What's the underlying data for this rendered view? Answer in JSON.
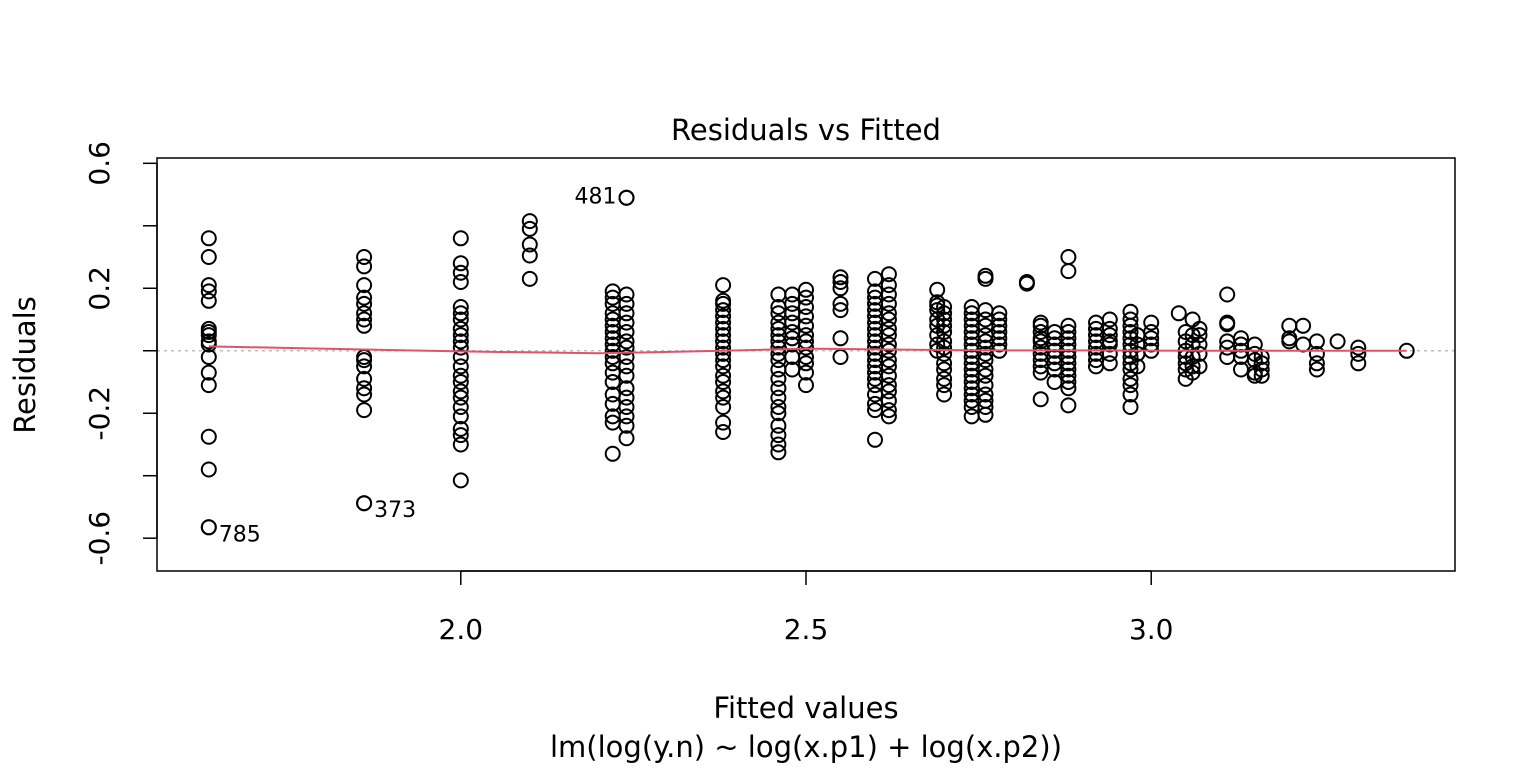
{
  "chart_data": {
    "type": "scatter",
    "title": "Residuals vs Fitted",
    "xlabel": "Fitted values",
    "subtitle": "lm(log(y.n) ~ log(x.p1) + log(x.p2))",
    "ylabel": "Residuals",
    "xlim": [
      1.56,
      3.44
    ],
    "ylim": [
      -0.705,
      0.617
    ],
    "xticks": [
      {
        "value": 2.0,
        "label": "2.0"
      },
      {
        "value": 2.5,
        "label": "2.5"
      },
      {
        "value": 3.0,
        "label": "3.0"
      }
    ],
    "yticks": [
      {
        "value": -0.6,
        "label": "-0.6",
        "labeled": true
      },
      {
        "value": -0.4,
        "label": "",
        "labeled": false
      },
      {
        "value": -0.2,
        "label": "-0.2",
        "labeled": true
      },
      {
        "value": 0.0,
        "label": "",
        "labeled": false
      },
      {
        "value": 0.2,
        "label": "0.2",
        "labeled": true
      },
      {
        "value": 0.4,
        "label": "",
        "labeled": false
      },
      {
        "value": 0.6,
        "label": "0.6",
        "labeled": true
      }
    ],
    "reference_line": {
      "y": 0,
      "style": "dotted",
      "color": "#bebebe"
    },
    "smooth_line": {
      "color": "#df536b",
      "points": [
        [
          1.635,
          0.014
        ],
        [
          1.86,
          0.004
        ],
        [
          2.0,
          -0.002
        ],
        [
          2.2,
          -0.008
        ],
        [
          2.38,
          0.0
        ],
        [
          2.5,
          0.007
        ],
        [
          2.62,
          0.004
        ],
        [
          2.75,
          0.001
        ],
        [
          2.9,
          0.001
        ],
        [
          3.1,
          0.0
        ],
        [
          3.37,
          0.0
        ]
      ]
    },
    "labeled_points": [
      {
        "x": 2.24,
        "y": 0.49,
        "label": "481",
        "side": "left"
      },
      {
        "x": 1.635,
        "y": -0.565,
        "label": "785",
        "side": "right"
      },
      {
        "x": 1.86,
        "y": -0.488,
        "label": "373",
        "side": "right"
      }
    ],
    "groups": [
      {
        "x": 1.635,
        "y": [
          0.36,
          0.3,
          0.21,
          0.19,
          0.16,
          0.07,
          0.06,
          0.05,
          0.03,
          0.02,
          -0.02,
          -0.07,
          -0.11,
          -0.275,
          -0.38,
          -0.565
        ]
      },
      {
        "x": 1.86,
        "y": [
          0.3,
          0.27,
          0.21,
          0.17,
          0.15,
          0.12,
          0.1,
          0.08,
          -0.02,
          -0.03,
          -0.05,
          -0.09,
          -0.12,
          -0.14,
          -0.19,
          -0.488
        ]
      },
      {
        "x": 2.0,
        "y": [
          0.36,
          0.28,
          0.25,
          0.22,
          0.14,
          0.12,
          0.1,
          0.07,
          0.05,
          0.03,
          0.01,
          -0.02,
          -0.05,
          -0.08,
          -0.1,
          -0.13,
          -0.15,
          -0.18,
          -0.21,
          -0.25,
          -0.27,
          -0.3,
          -0.415
        ]
      },
      {
        "x": 2.1,
        "y": [
          0.415,
          0.39,
          0.34,
          0.305,
          0.23
        ]
      },
      {
        "x": 2.22,
        "y": [
          0.19,
          0.17,
          0.15,
          0.12,
          0.1,
          0.08,
          0.06,
          0.04,
          0.02,
          0.0,
          -0.02,
          -0.04,
          -0.07,
          -0.1,
          -0.14,
          -0.17,
          -0.21,
          -0.23,
          -0.33
        ]
      },
      {
        "x": 2.24,
        "y": [
          0.49,
          0.18,
          0.15,
          0.12,
          0.09,
          0.06,
          0.03,
          0.01,
          -0.02,
          -0.05,
          -0.08,
          -0.12,
          -0.15,
          -0.18,
          -0.21,
          -0.24,
          -0.28
        ]
      },
      {
        "x": 2.38,
        "y": [
          0.21,
          0.16,
          0.15,
          0.13,
          0.11,
          0.09,
          0.07,
          0.05,
          0.03,
          0.01,
          -0.01,
          -0.03,
          -0.05,
          -0.08,
          -0.1,
          -0.13,
          -0.15,
          -0.18,
          -0.23,
          -0.26
        ]
      },
      {
        "x": 2.46,
        "y": [
          0.18,
          0.14,
          0.12,
          0.09,
          0.07,
          0.05,
          0.03,
          0.01,
          -0.01,
          -0.03,
          -0.06,
          -0.09,
          -0.12,
          -0.15,
          -0.18,
          -0.2,
          -0.24,
          -0.27,
          -0.3,
          -0.325
        ]
      },
      {
        "x": 2.48,
        "y": [
          0.18,
          0.15,
          0.12,
          0.09,
          0.06,
          0.04,
          0.02,
          -0.02,
          -0.06
        ]
      },
      {
        "x": 2.5,
        "y": [
          0.195,
          0.17,
          0.14,
          0.11,
          0.08,
          0.05,
          0.03,
          0.01,
          -0.02,
          -0.04,
          -0.07,
          -0.11
        ]
      },
      {
        "x": 2.55,
        "y": [
          0.235,
          0.22,
          0.2,
          0.15,
          0.13,
          0.04,
          -0.02
        ]
      },
      {
        "x": 2.6,
        "y": [
          0.23,
          0.19,
          0.17,
          0.15,
          0.13,
          0.11,
          0.09,
          0.07,
          0.05,
          0.03,
          0.01,
          -0.01,
          -0.03,
          -0.05,
          -0.07,
          -0.09,
          -0.11,
          -0.14,
          -0.17,
          -0.19,
          -0.285
        ]
      },
      {
        "x": 2.62,
        "y": [
          0.245,
          0.21,
          0.18,
          0.15,
          0.12,
          0.1,
          0.07,
          0.05,
          0.02,
          0.0,
          -0.03,
          -0.05,
          -0.08,
          -0.11,
          -0.13,
          -0.16,
          -0.19,
          -0.21
        ]
      },
      {
        "x": 2.69,
        "y": [
          0.195,
          0.155,
          0.145,
          0.13,
          0.1,
          0.08,
          0.05,
          0.02,
          0.0
        ]
      },
      {
        "x": 2.7,
        "y": [
          0.14,
          0.12,
          0.1,
          0.08,
          0.06,
          0.03,
          0.01,
          -0.01,
          -0.04,
          -0.06,
          -0.09,
          -0.11,
          -0.14
        ]
      },
      {
        "x": 2.74,
        "y": [
          0.14,
          0.12,
          0.1,
          0.08,
          0.06,
          0.04,
          0.02,
          0.0,
          -0.02,
          -0.04,
          -0.06,
          -0.08,
          -0.1,
          -0.12,
          -0.14,
          -0.16,
          -0.18,
          -0.21
        ]
      },
      {
        "x": 2.76,
        "y": [
          0.24,
          0.23,
          0.13,
          0.1,
          0.08,
          0.05,
          0.03,
          0.01,
          -0.01,
          -0.03,
          -0.06,
          -0.08,
          -0.11,
          -0.14,
          -0.16,
          -0.18,
          -0.205
        ]
      },
      {
        "x": 2.78,
        "y": [
          0.12,
          0.1,
          0.08,
          0.06,
          0.04,
          0.02,
          0.0
        ]
      },
      {
        "x": 2.82,
        "y": [
          0.22,
          0.215
        ]
      },
      {
        "x": 2.84,
        "y": [
          0.09,
          0.08,
          0.06,
          0.04,
          0.03,
          0.01,
          -0.01,
          -0.03,
          -0.05,
          -0.07,
          -0.155
        ]
      },
      {
        "x": 2.86,
        "y": [
          0.06,
          0.04,
          0.02,
          0.0,
          -0.02,
          -0.04,
          -0.06,
          -0.1
        ]
      },
      {
        "x": 2.88,
        "y": [
          0.3,
          0.255,
          0.08,
          0.06,
          0.04,
          0.02,
          0.0,
          -0.02,
          -0.04,
          -0.06,
          -0.08,
          -0.1,
          -0.12,
          -0.175
        ]
      },
      {
        "x": 2.92,
        "y": [
          0.09,
          0.07,
          0.05,
          0.03,
          0.01,
          -0.01,
          -0.03,
          -0.05
        ]
      },
      {
        "x": 2.94,
        "y": [
          0.1,
          0.07,
          0.05,
          0.03,
          0.02,
          -0.01,
          -0.04
        ]
      },
      {
        "x": 2.97,
        "y": [
          0.125,
          0.1,
          0.08,
          0.06,
          0.04,
          0.02,
          0.0,
          -0.02,
          -0.04,
          -0.06,
          -0.09,
          -0.11,
          -0.14,
          -0.18
        ]
      },
      {
        "x": 2.98,
        "y": [
          0.05,
          0.02,
          -0.01,
          -0.05
        ]
      },
      {
        "x": 3.0,
        "y": [
          0.09,
          0.06,
          0.04,
          0.02,
          0.0
        ]
      },
      {
        "x": 3.04,
        "y": [
          0.12
        ]
      },
      {
        "x": 3.05,
        "y": [
          0.06,
          0.03,
          0.0,
          -0.02,
          -0.04,
          -0.06,
          -0.09
        ]
      },
      {
        "x": 3.06,
        "y": [
          0.1,
          0.05,
          0.02,
          -0.02,
          -0.05,
          -0.07
        ]
      },
      {
        "x": 3.07,
        "y": [
          0.07,
          0.05,
          0.02,
          -0.01,
          -0.05
        ]
      },
      {
        "x": 3.11,
        "y": [
          0.18,
          0.09,
          0.085,
          0.03,
          0.01,
          -0.02
        ]
      },
      {
        "x": 3.13,
        "y": [
          0.04,
          0.02,
          0.0,
          -0.02,
          -0.06
        ]
      },
      {
        "x": 3.15,
        "y": [
          0.02,
          -0.01,
          -0.03,
          -0.07,
          -0.08
        ]
      },
      {
        "x": 3.16,
        "y": [
          -0.02,
          -0.04,
          -0.06,
          -0.08
        ]
      },
      {
        "x": 3.2,
        "y": [
          0.08,
          0.04,
          0.03
        ]
      },
      {
        "x": 3.22,
        "y": [
          0.08,
          0.02
        ]
      },
      {
        "x": 3.24,
        "y": [
          0.03,
          -0.01,
          -0.04,
          -0.06
        ]
      },
      {
        "x": 3.27,
        "y": [
          0.03
        ]
      },
      {
        "x": 3.3,
        "y": [
          0.01,
          -0.01,
          -0.04
        ]
      },
      {
        "x": 3.37,
        "y": [
          0.0
        ]
      }
    ]
  }
}
